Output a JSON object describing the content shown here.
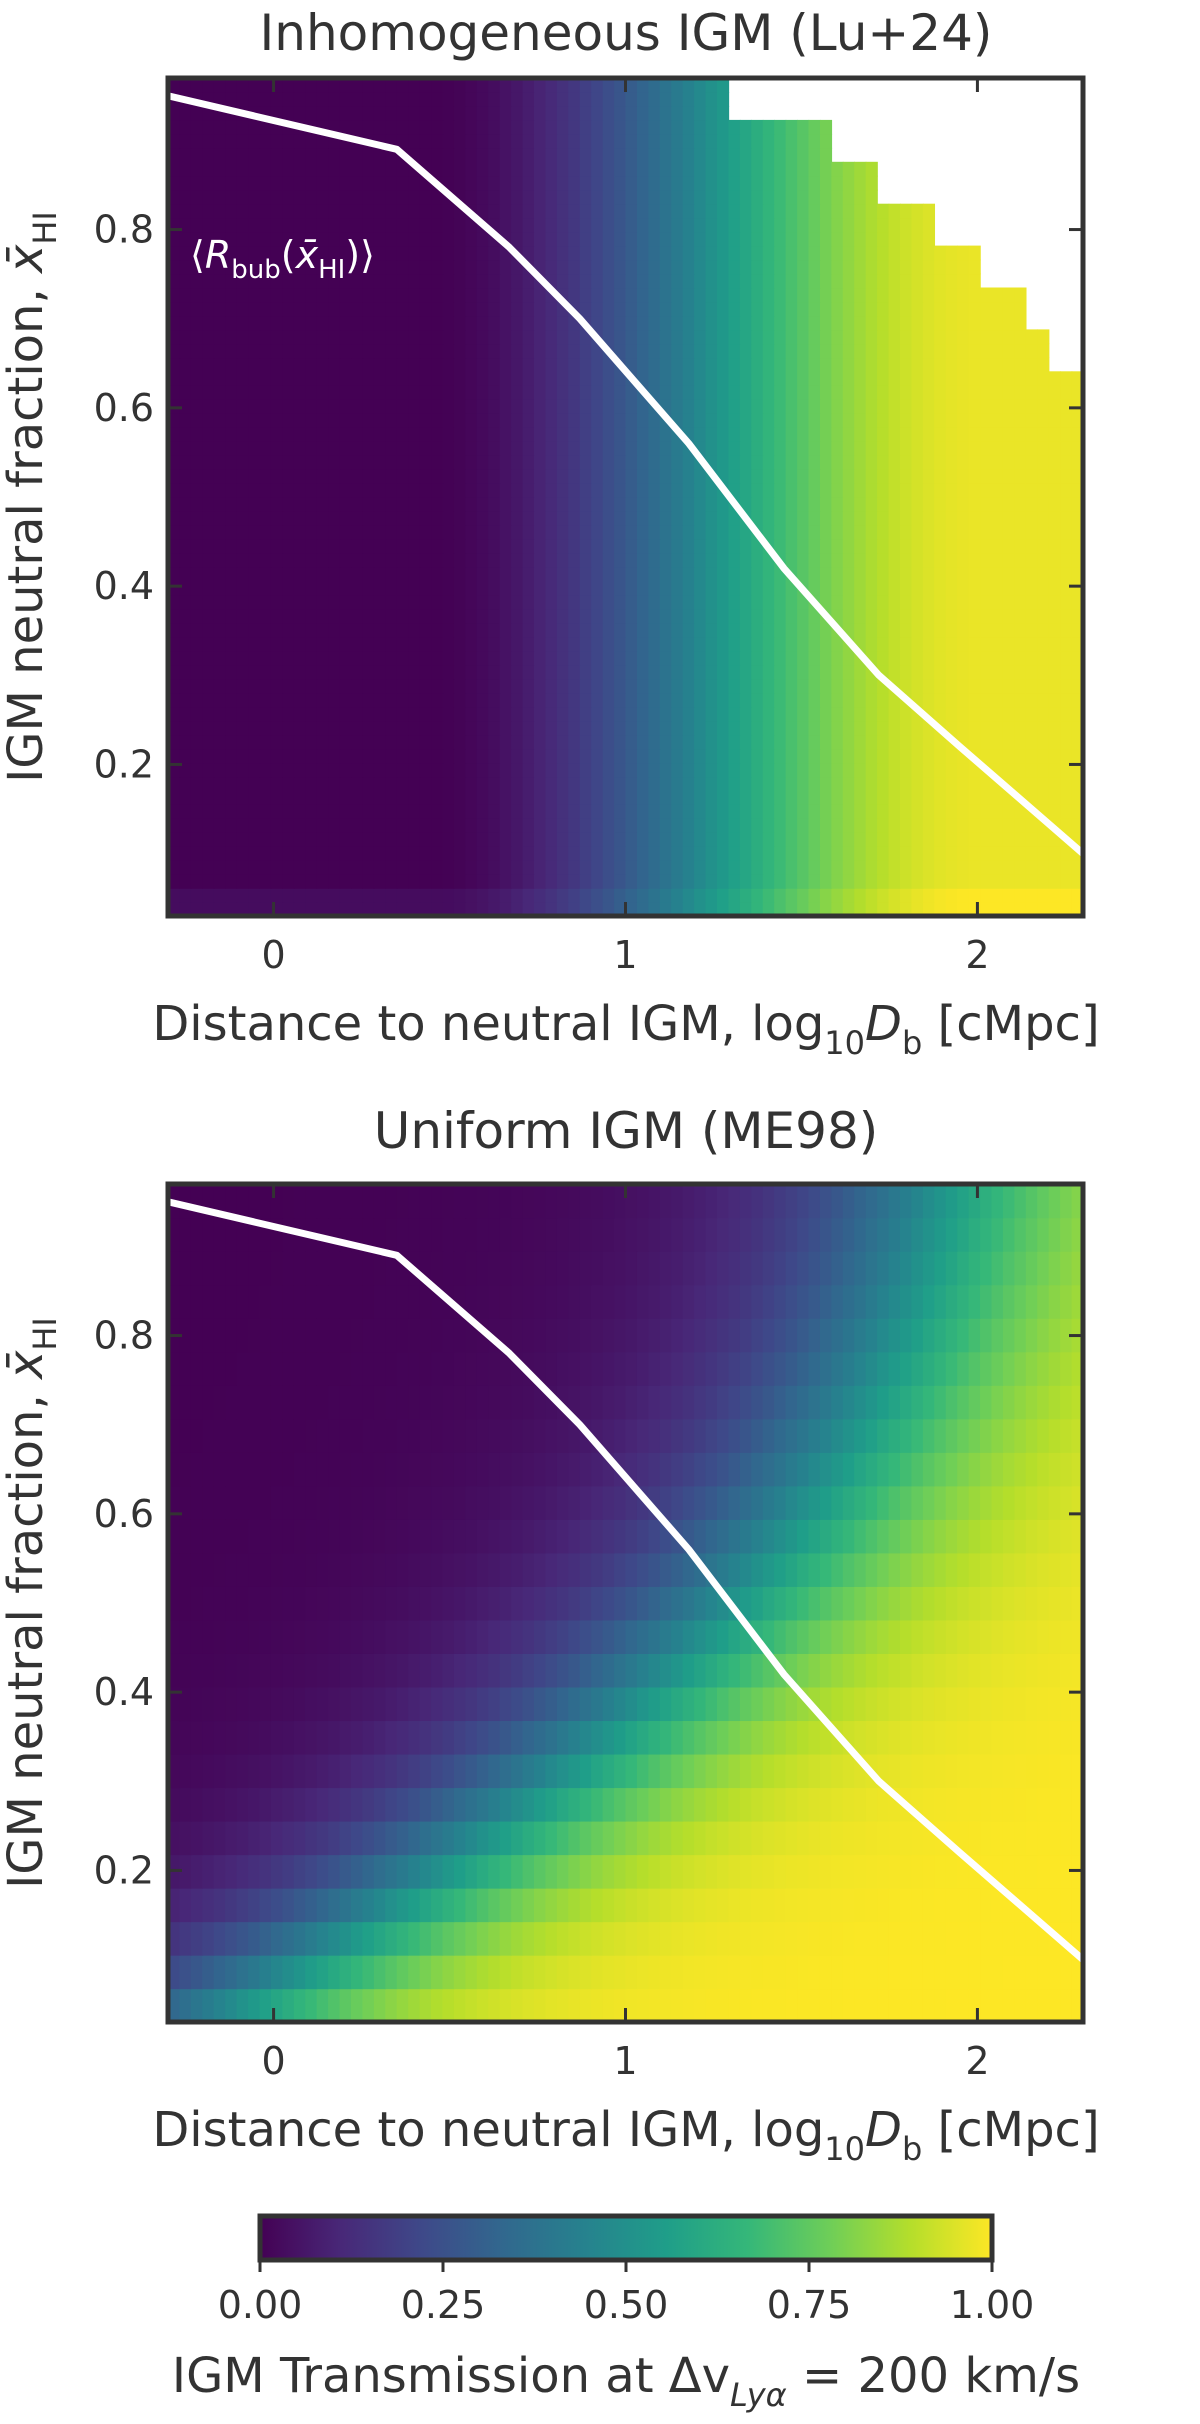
{
  "chart_data": [
    {
      "type": "heatmap",
      "title": "Inhomogeneous IGM (Lu+24)",
      "xlabel": "Distance to neutral IGM, log10Db [cMpc]",
      "ylabel": "IGM neutral fraction, x̄HI",
      "xlim": [
        -0.3,
        2.3
      ],
      "ylim": [
        0.03,
        0.97
      ],
      "xticks": [
        "0",
        "1",
        "2"
      ],
      "yticks": [
        "0.2",
        "0.4",
        "0.6",
        "0.8"
      ],
      "value_label": "IGM transmission",
      "model": "inhomogeneous",
      "missing_upper_right": [
        {
          "x_from": 1.3,
          "y_above": 0.93
        },
        {
          "x_from": 1.6,
          "y_above": 0.88
        },
        {
          "x_from": 1.72,
          "y_above": 0.83
        },
        {
          "x_from": 1.88,
          "y_above": 0.78
        },
        {
          "x_from": 2.02,
          "y_above": 0.74
        },
        {
          "x_from": 2.13,
          "y_above": 0.69
        },
        {
          "x_from": 2.2,
          "y_above": 0.64
        }
      ],
      "series": [
        {
          "name": "⟨Rbub(x̄HI)⟩",
          "x": [
            -0.3,
            0.35,
            0.67,
            0.87,
            1.18,
            1.45,
            1.72,
            1.95,
            2.3
          ],
          "y": [
            0.95,
            0.89,
            0.78,
            0.7,
            0.56,
            0.42,
            0.3,
            0.22,
            0.1
          ]
        }
      ],
      "annotation": {
        "base": "R",
        "sub1": "bub",
        "sub2": "HI"
      }
    },
    {
      "type": "heatmap",
      "title": "Uniform IGM (ME98)",
      "xlabel": "Distance to neutral IGM, log10Db [cMpc]",
      "ylabel": "IGM neutral fraction, x̄HI",
      "xlim": [
        -0.3,
        2.3
      ],
      "ylim": [
        0.03,
        0.97
      ],
      "xticks": [
        "0",
        "1",
        "2"
      ],
      "yticks": [
        "0.2",
        "0.4",
        "0.6",
        "0.8"
      ],
      "value_label": "IGM transmission",
      "model": "uniform",
      "series": [
        {
          "name": "⟨Rbub(x̄HI)⟩",
          "x": [
            -0.3,
            0.35,
            0.67,
            0.87,
            1.18,
            1.45,
            1.72,
            1.95,
            2.3
          ],
          "y": [
            0.95,
            0.89,
            0.78,
            0.7,
            0.56,
            0.42,
            0.3,
            0.22,
            0.1
          ]
        }
      ]
    }
  ],
  "colorbar": {
    "ticks": [
      "0.00",
      "0.25",
      "0.50",
      "0.75",
      "1.00"
    ],
    "range": [
      0,
      1
    ],
    "label": "IGM Transmission at Δv",
    "label_sub": "Lyα",
    "label_tail": " = 200 km/s",
    "colormap": [
      "#440154",
      "#482878",
      "#3e4989",
      "#31688e",
      "#26828e",
      "#1f9e89",
      "#35b779",
      "#6ece58",
      "#b5de2b",
      "#fde725"
    ]
  },
  "label_parts": {
    "xlabel_main": "Distance to neutral IGM, log",
    "xlabel_sub": "10",
    "xlabel_var": "D",
    "xlabel_var_sub": "b",
    "xlabel_unit": " [cMpc]",
    "ylabel_main": "IGM neutral fraction, ",
    "ylabel_var": "x̄",
    "ylabel_var_sub": "HI"
  }
}
